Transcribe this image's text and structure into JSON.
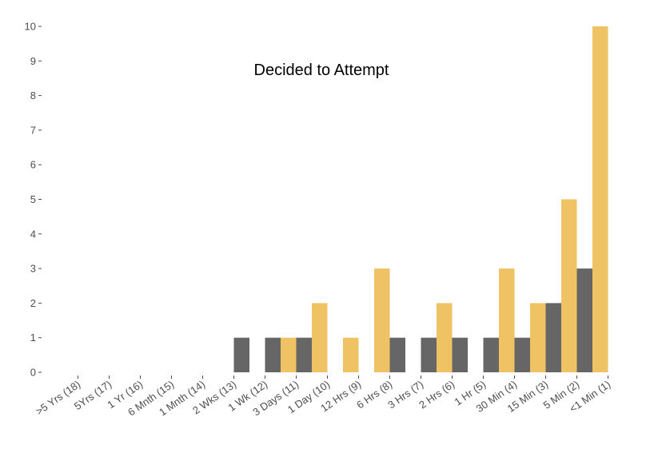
{
  "colors": {
    "gold": "#efc363",
    "gray": "#666666",
    "tick": "#4d4d4d",
    "background": "#ffffff"
  },
  "chart_data": {
    "type": "bar",
    "title": "Decided to Attempt",
    "xlabel": "",
    "ylabel": "",
    "ylim": [
      0,
      10
    ],
    "yticks": [
      0,
      1,
      2,
      3,
      4,
      5,
      6,
      7,
      8,
      9,
      10
    ],
    "grid": false,
    "legend": "none",
    "categories": [
      ">5 Yrs (18)",
      "5Yrs (17)",
      "1 Yr (16)",
      "6 Mnth (15)",
      "1 Mnth (14)",
      "2 Wks (13)",
      "1 Wk (12)",
      "3 Days (11)",
      "1 Day (10)",
      "12 Hrs (9)",
      "6 Hrs (8)",
      "3 Hrs (7)",
      "2 Hrs (6)",
      "1 Hr (5)",
      "30 Min (4)",
      "15 Min (3)",
      "5 Min (2)",
      "<1 Min (1)"
    ],
    "series": [
      {
        "color": "#efc363",
        "values": [
          0,
          0,
          0,
          0,
          0,
          0,
          0,
          1,
          2,
          1,
          3,
          0,
          2,
          0,
          3,
          2,
          5,
          10
        ]
      },
      {
        "color": "#666666",
        "values": [
          0,
          0,
          0,
          0,
          0,
          1,
          1,
          1,
          0,
          0,
          1,
          1,
          1,
          1,
          1,
          2,
          3,
          0
        ]
      }
    ]
  }
}
